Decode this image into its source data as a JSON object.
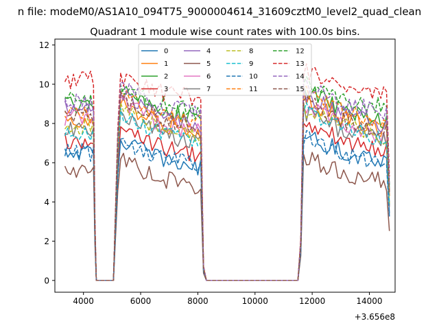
{
  "chart_data": {
    "type": "line",
    "suptitle": "n file: modeM0/AS1A10_094T75_9000004614_31609cztM0_level2_quad_clean",
    "title": "Quadrant 1 module wise count rates with 100.0s bins.",
    "xlabel": "",
    "ylabel": "",
    "x_offset_label": "+3.656e8",
    "xlim": [
      3000,
      14900
    ],
    "ylim": [
      -0.6,
      12.3
    ],
    "xticks": [
      4000,
      6000,
      8000,
      10000,
      12000,
      14000
    ],
    "xtick_labels": [
      "4000",
      "6000",
      "8000",
      "10000",
      "12000",
      "14000"
    ],
    "yticks": [
      0,
      2,
      4,
      6,
      8,
      10,
      12
    ],
    "ytick_labels": [
      "0",
      "2",
      "4",
      "6",
      "8",
      "10",
      "12"
    ],
    "grid": false,
    "legend_placement": "upper-center",
    "legend_columns": 4,
    "x_segments": [
      {
        "start": 3350,
        "end": 4300,
        "profile": "on"
      },
      {
        "start": 4400,
        "end": 4400,
        "profile": "drop",
        "factor": 0.32
      },
      {
        "start": 4450,
        "end": 4500,
        "profile": "zero"
      },
      {
        "start": 4550,
        "end": 5000,
        "profile": "zero"
      },
      {
        "start": 5100,
        "end": 5100,
        "profile": "rise",
        "factor": 0.25
      },
      {
        "start": 5200,
        "end": 5200,
        "profile": "rise",
        "factor": 0.75
      },
      {
        "start": 5300,
        "end": 8100,
        "profile": "on"
      },
      {
        "start": 8200,
        "end": 8200,
        "profile": "drop",
        "factor": 0.08
      },
      {
        "start": 8300,
        "end": 11500,
        "profile": "zero"
      },
      {
        "start": 11600,
        "end": 11600,
        "profile": "rise",
        "factor": 0.2
      },
      {
        "start": 11700,
        "end": 14600,
        "profile": "on"
      },
      {
        "start": 14700,
        "end": 14700,
        "profile": "drop",
        "factor": 0.55
      }
    ],
    "series": [
      {
        "name": "0",
        "color": "#1f77b4",
        "dash": "solid",
        "values": {
          "seg1": [
            6.6,
            6.5
          ],
          "seg2": [
            7.2,
            6.2,
            5.7
          ],
          "seg3": [
            7.5,
            6.5,
            6.1
          ]
        }
      },
      {
        "name": "1",
        "color": "#ff7f0e",
        "dash": "solid",
        "values": {
          "seg1": [
            8.2,
            8.0
          ],
          "seg2": [
            9.0,
            8.0,
            7.3
          ],
          "seg3": [
            9.3,
            8.2,
            7.6
          ]
        }
      },
      {
        "name": "2",
        "color": "#2ca02c",
        "dash": "solid",
        "values": {
          "seg1": [
            9.1,
            8.8
          ],
          "seg2": [
            9.6,
            8.7,
            8.2
          ],
          "seg3": [
            9.8,
            8.6,
            8.1
          ]
        }
      },
      {
        "name": "3",
        "color": "#d62728",
        "dash": "solid",
        "values": {
          "seg1": [
            7.2,
            6.9
          ],
          "seg2": [
            7.8,
            6.8,
            6.3
          ],
          "seg3": [
            8.2,
            7.1,
            6.6
          ]
        }
      },
      {
        "name": "4",
        "color": "#9467bd",
        "dash": "solid",
        "values": {
          "seg1": [
            8.8,
            8.6
          ],
          "seg2": [
            9.5,
            8.4,
            7.9
          ],
          "seg3": [
            9.5,
            8.4,
            7.8
          ]
        }
      },
      {
        "name": "5",
        "color": "#8c564b",
        "dash": "solid",
        "values": {
          "seg1": [
            5.4,
            5.6
          ],
          "seg2": [
            6.1,
            5.2,
            4.8
          ],
          "seg3": [
            6.3,
            5.4,
            5.0
          ]
        }
      },
      {
        "name": "6",
        "color": "#e377c2",
        "dash": "solid",
        "values": {
          "seg1": [
            8.3,
            8.1
          ],
          "seg2": [
            9.2,
            7.9,
            7.6
          ],
          "seg3": [
            9.0,
            7.8,
            7.3
          ]
        }
      },
      {
        "name": "7",
        "color": "#7f7f7f",
        "dash": "solid",
        "values": {
          "seg1": [
            7.8,
            7.5
          ],
          "seg2": [
            8.5,
            7.4,
            7.0
          ],
          "seg3": [
            8.6,
            7.6,
            7.1
          ]
        }
      },
      {
        "name": "8",
        "color": "#bcbd22",
        "dash": "dashed",
        "values": {
          "seg1": [
            8.0,
            7.8
          ],
          "seg2": [
            8.9,
            7.7,
            7.2
          ],
          "seg3": [
            8.8,
            7.8,
            7.3
          ]
        }
      },
      {
        "name": "9",
        "color": "#17becf",
        "dash": "dashed",
        "values": {
          "seg1": [
            7.6,
            7.4
          ],
          "seg2": [
            8.6,
            7.5,
            7.0
          ],
          "seg3": [
            8.7,
            7.7,
            7.2
          ]
        }
      },
      {
        "name": "10",
        "color": "#1f77b4",
        "dash": "dashed",
        "values": {
          "seg1": [
            6.5,
            6.4
          ],
          "seg2": [
            7.0,
            6.3,
            5.9
          ],
          "seg3": [
            7.3,
            6.4,
            6.0
          ]
        }
      },
      {
        "name": "11",
        "color": "#ff7f0e",
        "dash": "dashed",
        "values": {
          "seg1": [
            8.7,
            8.4
          ],
          "seg2": [
            9.4,
            8.4,
            8.0
          ],
          "seg3": [
            9.6,
            8.6,
            8.1
          ]
        }
      },
      {
        "name": "12",
        "color": "#2ca02c",
        "dash": "dashed",
        "values": {
          "seg1": [
            9.3,
            9.0
          ],
          "seg2": [
            9.7,
            9.0,
            8.6
          ],
          "seg3": [
            10.1,
            9.2,
            8.8
          ]
        }
      },
      {
        "name": "13",
        "color": "#d62728",
        "dash": "dashed",
        "values": {
          "seg1": [
            10.1,
            10.3
          ],
          "seg2": [
            10.3,
            9.6,
            9.3
          ],
          "seg3": [
            10.8,
            9.8,
            9.5
          ]
        }
      },
      {
        "name": "14",
        "color": "#9467bd",
        "dash": "dashed",
        "values": {
          "seg1": [
            9.2,
            8.9
          ],
          "seg2": [
            9.8,
            8.9,
            8.5
          ],
          "seg3": [
            10.0,
            9.0,
            8.6
          ]
        }
      },
      {
        "name": "15",
        "color": "#8c564b",
        "dash": "dashed",
        "values": {
          "seg1": [
            8.5,
            8.2
          ],
          "seg2": [
            9.3,
            8.2,
            7.8
          ],
          "seg3": [
            9.2,
            8.1,
            7.7
          ]
        }
      }
    ]
  }
}
